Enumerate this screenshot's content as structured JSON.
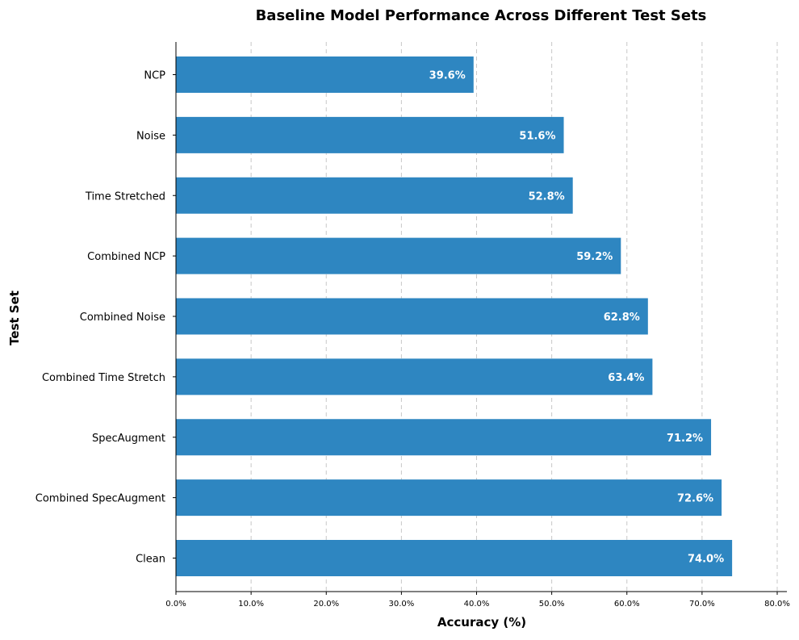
{
  "chart_data": {
    "type": "bar",
    "orientation": "horizontal",
    "title": "Baseline Model Performance Across Different Test Sets",
    "xlabel": "Accuracy (%)",
    "ylabel": "Test Set",
    "categories": [
      "NCP",
      "Noise",
      "Time Stretched",
      "Combined NCP",
      "Combined Noise",
      "Combined Time Stretch",
      "SpecAugment",
      "Combined SpecAugment",
      "Clean"
    ],
    "values": [
      39.6,
      51.6,
      52.8,
      59.2,
      62.8,
      63.4,
      71.2,
      72.6,
      74.0
    ],
    "value_labels": [
      "39.6%",
      "51.6%",
      "52.8%",
      "59.2%",
      "62.8%",
      "63.4%",
      "71.2%",
      "72.6%",
      "74.0%"
    ],
    "xlim": [
      0,
      80
    ],
    "xticks": [
      0,
      10,
      20,
      30,
      40,
      50,
      60,
      70,
      80
    ],
    "xtick_labels": [
      "0.0%",
      "10.0%",
      "20.0%",
      "30.0%",
      "40.0%",
      "50.0%",
      "60.0%",
      "70.0%",
      "80.0%"
    ],
    "grid": "vertical dashed",
    "bar_color": "#2e86c1",
    "legend": "none"
  }
}
